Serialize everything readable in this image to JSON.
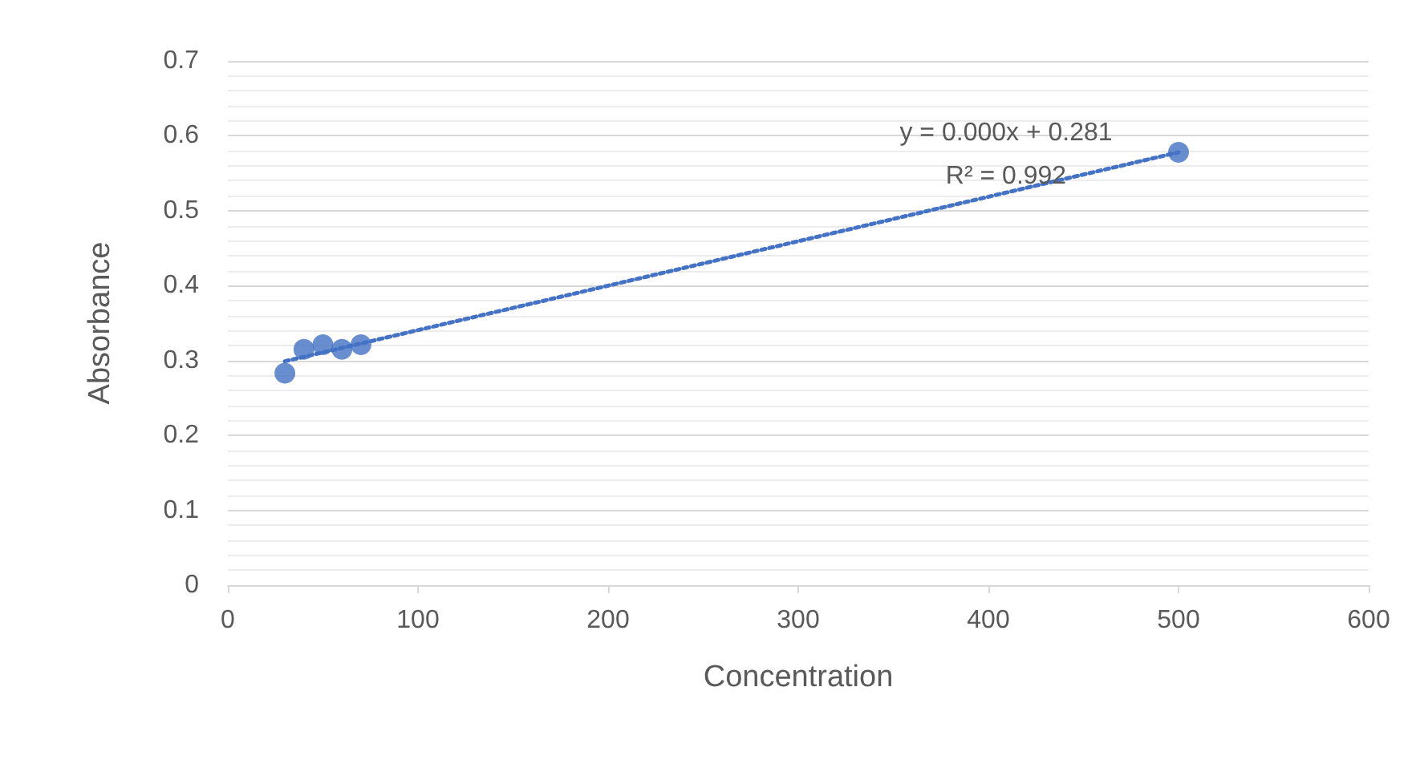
{
  "chart_data": {
    "type": "scatter",
    "xlabel": "Concentration",
    "ylabel": "Absorbance",
    "series": [
      {
        "color": "#4472c4",
        "x": [
          30,
          40,
          50,
          60,
          70,
          500
        ],
        "values": [
          0.283,
          0.315,
          0.321,
          0.315,
          0.321,
          0.578
        ],
        "marker": "circle"
      },
      {
        "type": "line",
        "color": "#4472c4",
        "x": [
          30,
          500
        ],
        "values": [
          0.299,
          0.578
        ],
        "line_style": "dotted",
        "marker": "none"
      }
    ],
    "annotations": [
      "y = 0.000x + 0.281",
      "R² = 0.992"
    ],
    "xlim": [
      0,
      600
    ],
    "xticks": [
      0,
      100,
      200,
      300,
      400,
      500,
      600
    ],
    "ylim": [
      0,
      0.7
    ],
    "yticks": [
      0,
      0.1,
      0.2,
      0.3,
      0.4,
      0.5,
      0.6,
      0.7
    ],
    "grid": "y"
  }
}
